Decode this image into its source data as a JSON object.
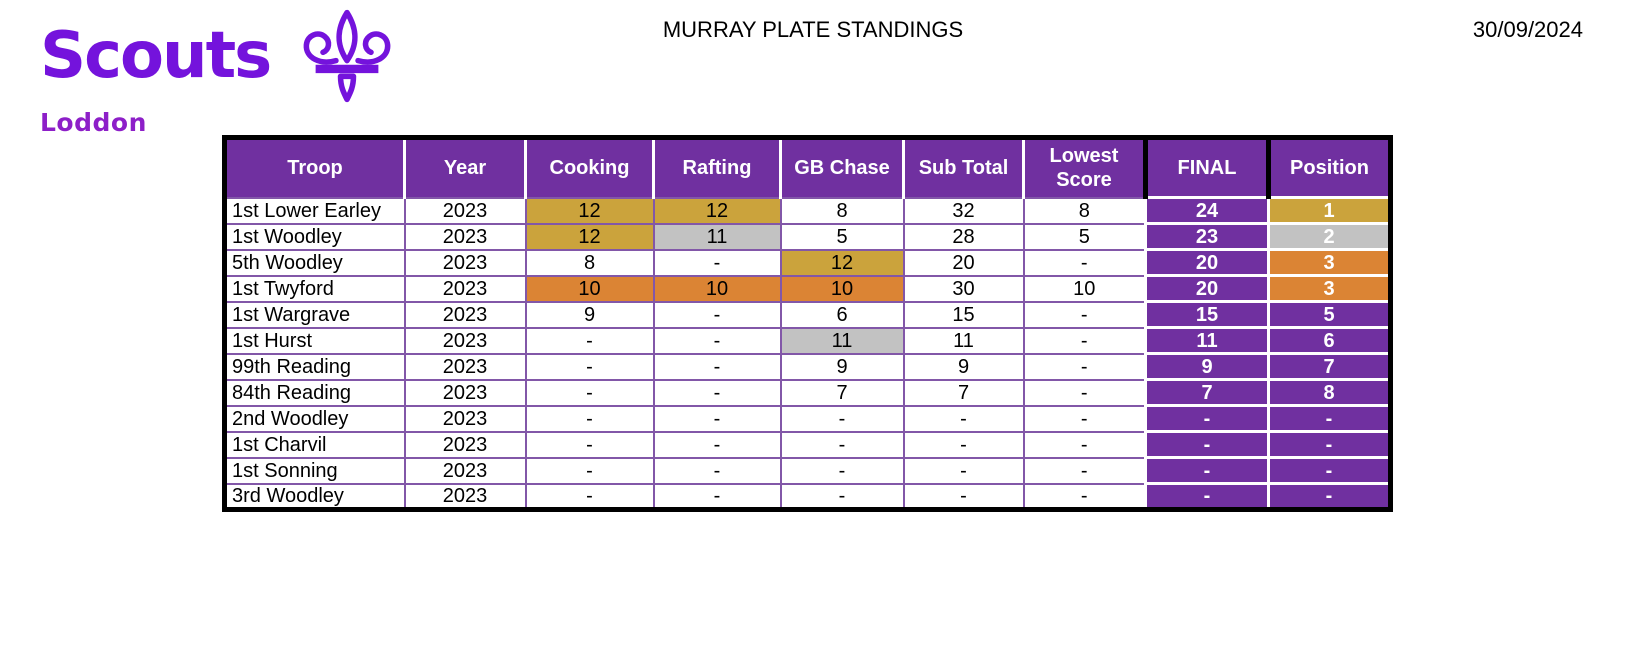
{
  "logo": {
    "brand": "Scouts",
    "region": "Loddon",
    "icon": "fleur-de-lis-icon"
  },
  "header": {
    "title": "MURRAY PLATE STANDINGS",
    "date": "30/09/2024"
  },
  "colors": {
    "brand_purple": "#7413DC",
    "region_purple": "#8D1FC8",
    "table_purple": "#7030A0",
    "grid_purple": "#8257A8",
    "gold": "#CBA33C",
    "silver": "#C2C2C2",
    "bronze": "#DB8434",
    "outer_border": "#000000"
  },
  "table": {
    "columns": [
      {
        "key": "troop",
        "label": "Troop"
      },
      {
        "key": "year",
        "label": "Year"
      },
      {
        "key": "cooking",
        "label": "Cooking"
      },
      {
        "key": "rafting",
        "label": "Rafting"
      },
      {
        "key": "gb_chase",
        "label": "GB Chase"
      },
      {
        "key": "sub_total",
        "label": "Sub Total"
      },
      {
        "key": "lowest_score",
        "label": "Lowest Score"
      },
      {
        "key": "final",
        "label": "FINAL"
      },
      {
        "key": "position",
        "label": "Position"
      }
    ],
    "rows": [
      {
        "troop": "1st Lower Earley",
        "year": "2023",
        "cooking": "12",
        "rafting": "12",
        "gb_chase": "8",
        "sub_total": "32",
        "lowest_score": "8",
        "final": "24",
        "position": "1",
        "highlights": {
          "cooking": "gold",
          "rafting": "gold",
          "position": "gold"
        }
      },
      {
        "troop": "1st Woodley",
        "year": "2023",
        "cooking": "12",
        "rafting": "11",
        "gb_chase": "5",
        "sub_total": "28",
        "lowest_score": "5",
        "final": "23",
        "position": "2",
        "highlights": {
          "cooking": "gold",
          "rafting": "silver",
          "position": "silver"
        }
      },
      {
        "troop": "5th Woodley",
        "year": "2023",
        "cooking": "8",
        "rafting": "-",
        "gb_chase": "12",
        "sub_total": "20",
        "lowest_score": "-",
        "final": "20",
        "position": "3",
        "highlights": {
          "gb_chase": "gold",
          "position": "bronze"
        }
      },
      {
        "troop": "1st Twyford",
        "year": "2023",
        "cooking": "10",
        "rafting": "10",
        "gb_chase": "10",
        "sub_total": "30",
        "lowest_score": "10",
        "final": "20",
        "position": "3",
        "highlights": {
          "cooking": "bronze",
          "rafting": "bronze",
          "gb_chase": "bronze",
          "position": "bronze"
        }
      },
      {
        "troop": "1st Wargrave",
        "year": "2023",
        "cooking": "9",
        "rafting": "-",
        "gb_chase": "6",
        "sub_total": "15",
        "lowest_score": "-",
        "final": "15",
        "position": "5",
        "highlights": {}
      },
      {
        "troop": "1st Hurst",
        "year": "2023",
        "cooking": "-",
        "rafting": "-",
        "gb_chase": "11",
        "sub_total": "11",
        "lowest_score": "-",
        "final": "11",
        "position": "6",
        "highlights": {
          "gb_chase": "silver"
        }
      },
      {
        "troop": "99th Reading",
        "year": "2023",
        "cooking": "-",
        "rafting": "-",
        "gb_chase": "9",
        "sub_total": "9",
        "lowest_score": "-",
        "final": "9",
        "position": "7",
        "highlights": {}
      },
      {
        "troop": "84th Reading",
        "year": "2023",
        "cooking": "-",
        "rafting": "-",
        "gb_chase": "7",
        "sub_total": "7",
        "lowest_score": "-",
        "final": "7",
        "position": "8",
        "highlights": {}
      },
      {
        "troop": "2nd Woodley",
        "year": "2023",
        "cooking": "-",
        "rafting": "-",
        "gb_chase": "-",
        "sub_total": "-",
        "lowest_score": "-",
        "final": "-",
        "position": "-",
        "highlights": {}
      },
      {
        "troop": "1st Charvil",
        "year": "2023",
        "cooking": "-",
        "rafting": "-",
        "gb_chase": "-",
        "sub_total": "-",
        "lowest_score": "-",
        "final": "-",
        "position": "-",
        "highlights": {}
      },
      {
        "troop": "1st Sonning",
        "year": "2023",
        "cooking": "-",
        "rafting": "-",
        "gb_chase": "-",
        "sub_total": "-",
        "lowest_score": "-",
        "final": "-",
        "position": "-",
        "highlights": {}
      },
      {
        "troop": "3rd Woodley",
        "year": "2023",
        "cooking": "-",
        "rafting": "-",
        "gb_chase": "-",
        "sub_total": "-",
        "lowest_score": "-",
        "final": "-",
        "position": "-",
        "highlights": {}
      }
    ]
  }
}
